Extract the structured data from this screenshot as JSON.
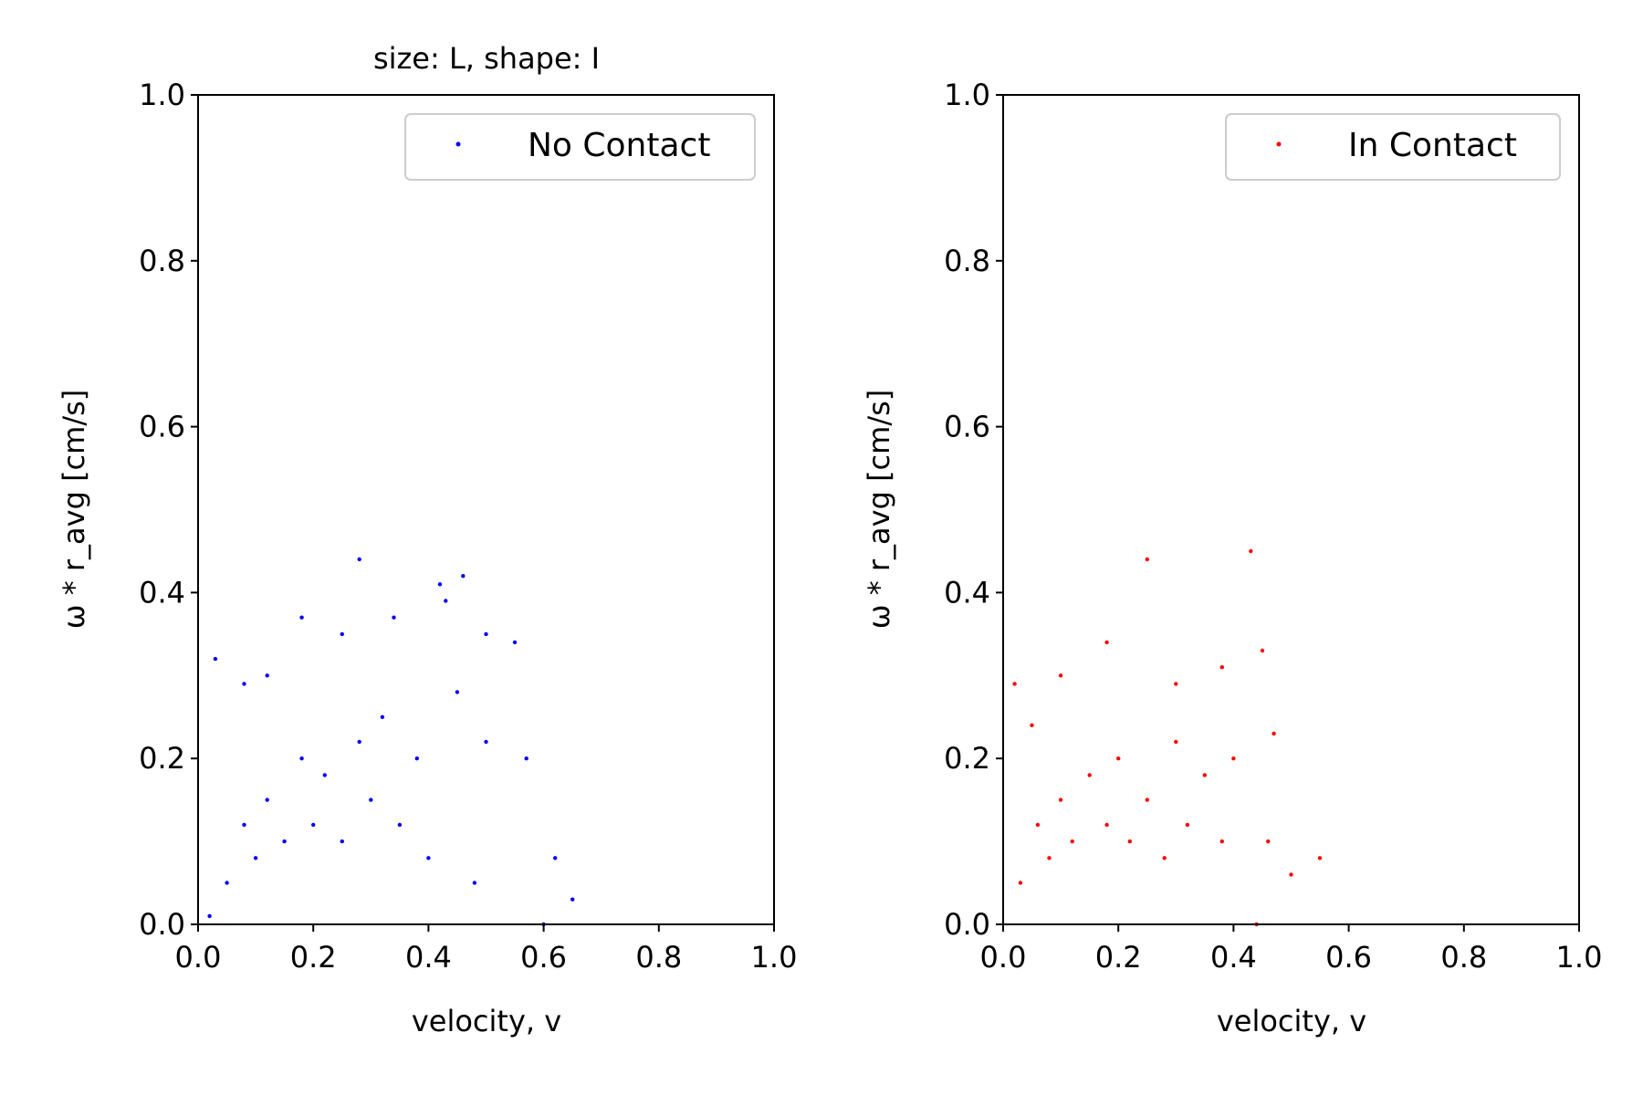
{
  "chart_data": [
    {
      "type": "scatter",
      "title": "size: L,  shape: I",
      "xlabel": "velocity, v",
      "ylabel": "ω * r_avg [cm/s]",
      "xlim": [
        0.0,
        1.0
      ],
      "ylim": [
        0.0,
        1.0
      ],
      "xticks": [
        "0.0",
        "0.2",
        "0.4",
        "0.6",
        "0.8",
        "1.0"
      ],
      "yticks": [
        "0.0",
        "0.2",
        "0.4",
        "0.6",
        "0.8",
        "1.0"
      ],
      "grid": false,
      "legend_position": "top-right",
      "series": [
        {
          "name": "No Contact",
          "color": "#0000ff",
          "points": [
            [
              0.05,
              0.05
            ],
            [
              0.08,
              0.12
            ],
            [
              0.1,
              0.08
            ],
            [
              0.12,
              0.15
            ],
            [
              0.15,
              0.1
            ],
            [
              0.18,
              0.2
            ],
            [
              0.2,
              0.12
            ],
            [
              0.22,
              0.18
            ],
            [
              0.25,
              0.1
            ],
            [
              0.28,
              0.22
            ],
            [
              0.3,
              0.15
            ],
            [
              0.32,
              0.25
            ],
            [
              0.35,
              0.12
            ],
            [
              0.38,
              0.2
            ],
            [
              0.4,
              0.08
            ],
            [
              0.12,
              0.3
            ],
            [
              0.18,
              0.37
            ],
            [
              0.25,
              0.35
            ],
            [
              0.28,
              0.44
            ],
            [
              0.34,
              0.37
            ],
            [
              0.42,
              0.41
            ],
            [
              0.46,
              0.42
            ],
            [
              0.5,
              0.35
            ],
            [
              0.55,
              0.34
            ],
            [
              0.57,
              0.2
            ],
            [
              0.6,
              0.0
            ],
            [
              0.62,
              0.08
            ],
            [
              0.65,
              0.03
            ],
            [
              0.03,
              0.32
            ],
            [
              0.08,
              0.29
            ],
            [
              0.45,
              0.28
            ],
            [
              0.5,
              0.22
            ],
            [
              0.48,
              0.05
            ],
            [
              0.02,
              0.01
            ],
            [
              0.43,
              0.39
            ]
          ]
        }
      ]
    },
    {
      "type": "scatter",
      "title": "",
      "xlabel": "velocity, v",
      "ylabel": "ω * r_avg [cm/s]",
      "xlim": [
        0.0,
        1.0
      ],
      "ylim": [
        0.0,
        1.0
      ],
      "xticks": [
        "0.0",
        "0.2",
        "0.4",
        "0.6",
        "0.8",
        "1.0"
      ],
      "yticks": [
        "0.0",
        "0.2",
        "0.4",
        "0.6",
        "0.8",
        "1.0"
      ],
      "grid": false,
      "legend_position": "top-right",
      "series": [
        {
          "name": "In Contact",
          "color": "#ff0000",
          "points": [
            [
              0.03,
              0.05
            ],
            [
              0.06,
              0.12
            ],
            [
              0.08,
              0.08
            ],
            [
              0.1,
              0.15
            ],
            [
              0.12,
              0.1
            ],
            [
              0.15,
              0.18
            ],
            [
              0.18,
              0.12
            ],
            [
              0.2,
              0.2
            ],
            [
              0.22,
              0.1
            ],
            [
              0.25,
              0.15
            ],
            [
              0.28,
              0.08
            ],
            [
              0.3,
              0.22
            ],
            [
              0.32,
              0.12
            ],
            [
              0.35,
              0.18
            ],
            [
              0.38,
              0.1
            ],
            [
              0.05,
              0.24
            ],
            [
              0.1,
              0.3
            ],
            [
              0.18,
              0.34
            ],
            [
              0.25,
              0.44
            ],
            [
              0.3,
              0.29
            ],
            [
              0.38,
              0.31
            ],
            [
              0.43,
              0.45
            ],
            [
              0.45,
              0.33
            ],
            [
              0.47,
              0.23
            ],
            [
              0.46,
              0.1
            ],
            [
              0.55,
              0.08
            ],
            [
              0.5,
              0.06
            ],
            [
              0.02,
              0.29
            ],
            [
              0.44,
              0.0
            ],
            [
              0.4,
              0.2
            ]
          ]
        }
      ]
    }
  ]
}
